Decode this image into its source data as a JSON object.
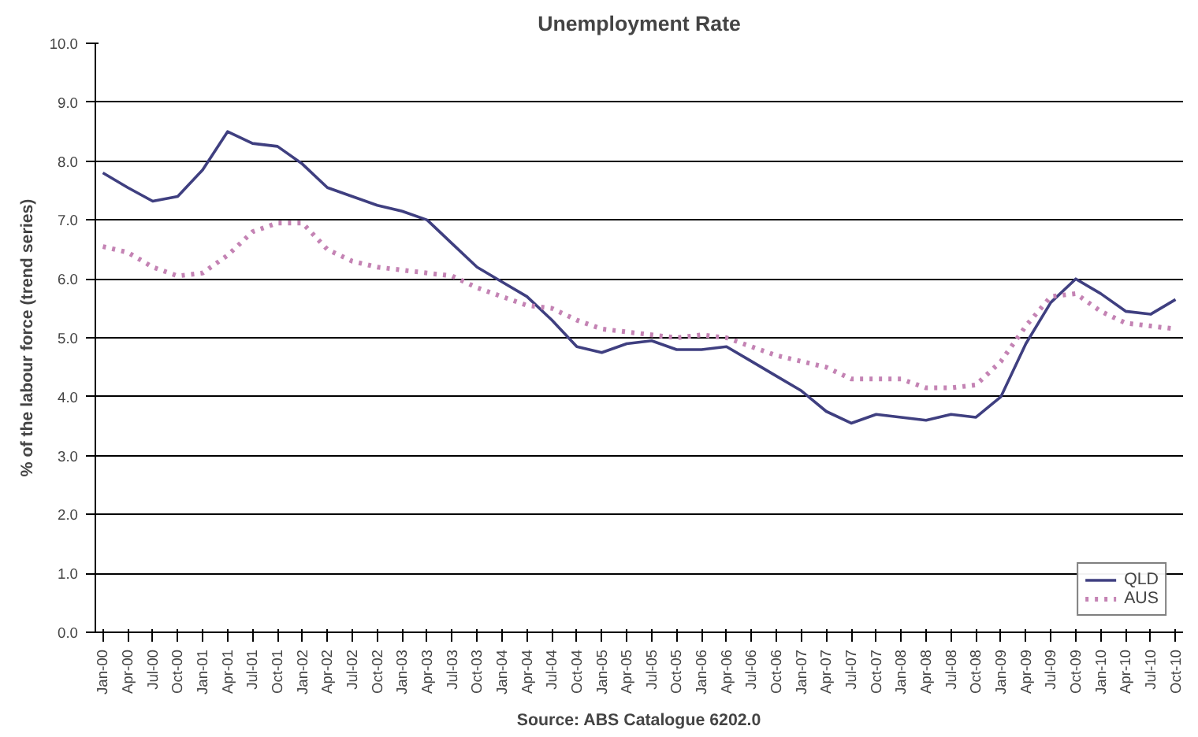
{
  "chart_data": {
    "type": "line",
    "title": "Unemployment Rate",
    "ylabel": "% of the labour force (trend series)",
    "annotations": [
      "Source: ABS Catalogue 6202.0"
    ],
    "categories": [
      "Jan-00",
      "Apr-00",
      "Jul-00",
      "Oct-00",
      "Jan-01",
      "Apr-01",
      "Jul-01",
      "Oct-01",
      "Jan-02",
      "Apr-02",
      "Jul-02",
      "Oct-02",
      "Jan-03",
      "Apr-03",
      "Jul-03",
      "Oct-03",
      "Jan-04",
      "Apr-04",
      "Jul-04",
      "Oct-04",
      "Jan-05",
      "Apr-05",
      "Jul-05",
      "Oct-05",
      "Jan-06",
      "Apr-06",
      "Jul-06",
      "Oct-06",
      "Jan-07",
      "Apr-07",
      "Jul-07",
      "Oct-07",
      "Jan-08",
      "Apr-08",
      "Jul-08",
      "Oct-08",
      "Jan-09",
      "Apr-09",
      "Jul-09",
      "Oct-09",
      "Jan-10",
      "Apr-10",
      "Jul-10",
      "Oct-10"
    ],
    "series": [
      {
        "name": "QLD",
        "color": "#3f3f80",
        "line_style": "solid",
        "values": [
          7.8,
          7.55,
          7.32,
          7.4,
          7.85,
          8.5,
          8.3,
          8.25,
          7.95,
          7.55,
          7.4,
          7.25,
          7.15,
          7.0,
          6.6,
          6.2,
          5.95,
          5.7,
          5.3,
          4.85,
          4.75,
          4.9,
          4.95,
          4.8,
          4.8,
          4.85,
          4.6,
          4.35,
          4.1,
          3.75,
          3.55,
          3.7,
          3.65,
          3.6,
          3.7,
          3.65,
          4.0,
          4.9,
          5.6,
          6.0,
          5.75,
          5.45,
          5.4,
          5.65
        ]
      },
      {
        "name": "AUS",
        "color": "#c483b4",
        "line_style": "dotted",
        "values": [
          6.55,
          6.45,
          6.2,
          6.05,
          6.1,
          6.4,
          6.8,
          6.95,
          6.95,
          6.5,
          6.3,
          6.2,
          6.15,
          6.1,
          6.05,
          5.85,
          5.7,
          5.55,
          5.5,
          5.3,
          5.15,
          5.1,
          5.05,
          5.0,
          5.05,
          5.0,
          4.85,
          4.7,
          4.6,
          4.5,
          4.3,
          4.3,
          4.3,
          4.15,
          4.15,
          4.2,
          4.6,
          5.2,
          5.7,
          5.75,
          5.45,
          5.25,
          5.2,
          5.15
        ]
      }
    ],
    "ylim": [
      0,
      10
    ],
    "yticks": [
      {
        "value": 0,
        "label": "0.0"
      },
      {
        "value": 1,
        "label": "1.0"
      },
      {
        "value": 2,
        "label": "2.0"
      },
      {
        "value": 3,
        "label": "3.0"
      },
      {
        "value": 4,
        "label": "4.0"
      },
      {
        "value": 5,
        "label": "5.0"
      },
      {
        "value": 6,
        "label": "6.0"
      },
      {
        "value": 7,
        "label": "7.0"
      },
      {
        "value": 8,
        "label": "8.0"
      },
      {
        "value": 9,
        "label": "9.0"
      },
      {
        "value": 10,
        "label": "10.0"
      }
    ],
    "grid": "y",
    "legend": "bottom right"
  }
}
